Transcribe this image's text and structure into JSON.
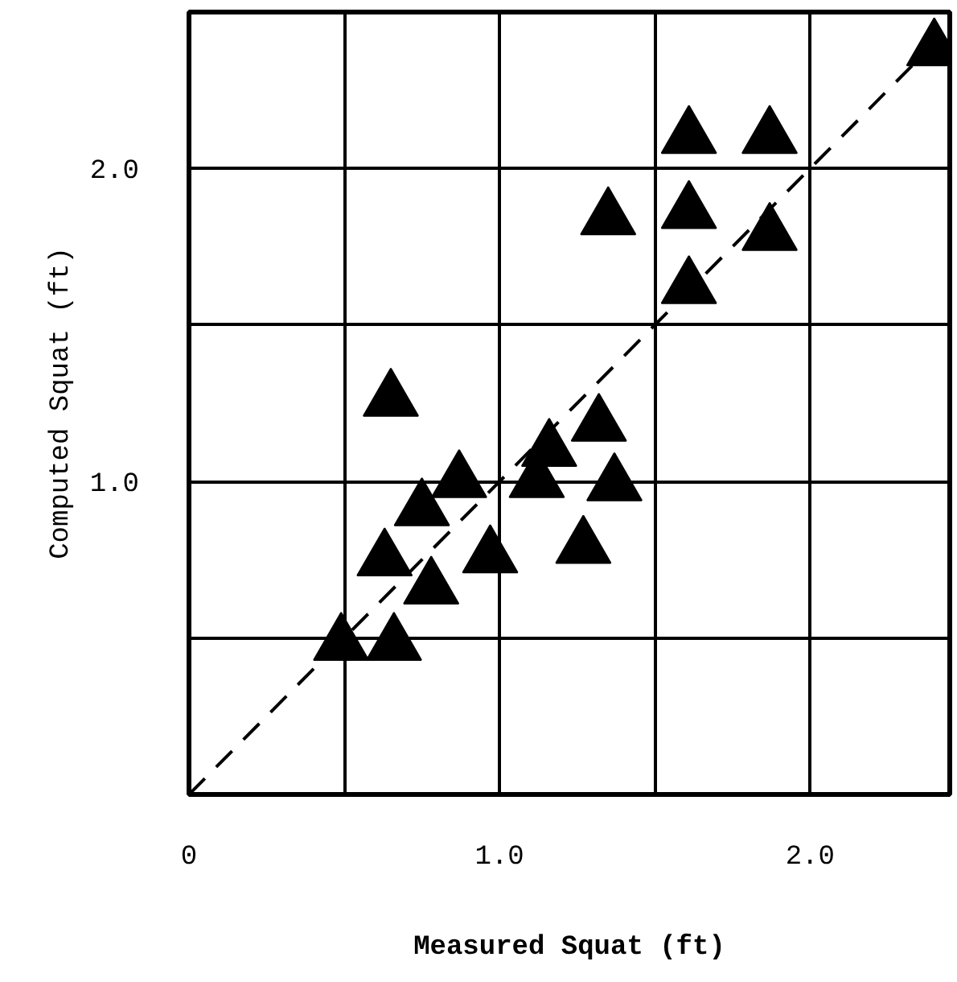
{
  "chart_data": {
    "type": "scatter",
    "xlabel": "Measured Squat (ft)",
    "ylabel": "Computed Squat (ft)",
    "xlim": [
      0,
      2.45
    ],
    "ylim": [
      0,
      2.5
    ],
    "xticks": [
      0,
      {
        "value": 0.5,
        "label": null
      },
      {
        "value": 1.0,
        "label": "1.0"
      },
      {
        "value": 1.5,
        "label": null
      },
      {
        "value": 2.0,
        "label": "2.0"
      }
    ],
    "yticks": [
      {
        "value": 0,
        "label": null
      },
      {
        "value": 0.5,
        "label": null
      },
      {
        "value": 1.0,
        "label": "1.0"
      },
      {
        "value": 1.5,
        "label": null
      },
      {
        "value": 2.0,
        "label": "2.0"
      }
    ],
    "grid": true,
    "marker": "triangle",
    "series": [
      {
        "color": "#000000",
        "x": [
          0.65,
          0.87,
          0.75,
          0.63,
          0.78,
          0.49,
          0.66,
          0.97,
          1.27,
          1.37,
          1.32,
          1.16,
          1.12,
          1.35,
          1.61,
          1.87,
          1.61,
          1.87,
          1.61,
          2.4
        ],
        "values": [
          1.26,
          1.0,
          0.91,
          0.75,
          0.66,
          0.48,
          0.48,
          0.76,
          0.79,
          0.99,
          1.18,
          1.1,
          1.0,
          1.84,
          2.1,
          2.1,
          1.86,
          1.79,
          1.62,
          2.38
        ]
      },
      {
        "type": "line",
        "color": "#000000",
        "line_style": "dashed",
        "marker": "none",
        "x": [
          0,
          2.45
        ],
        "values": [
          0,
          2.45
        ]
      }
    ]
  }
}
